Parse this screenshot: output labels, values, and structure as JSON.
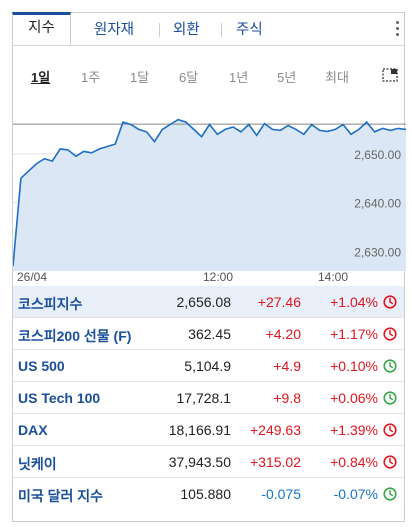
{
  "tabs": [
    {
      "label": "지수",
      "active": true
    },
    {
      "label": "원자재",
      "active": false
    },
    {
      "label": "외환",
      "active": false
    },
    {
      "label": "주식",
      "active": false
    }
  ],
  "ranges": [
    {
      "label": "1일",
      "active": true
    },
    {
      "label": "1주",
      "active": false
    },
    {
      "label": "1달",
      "active": false
    },
    {
      "label": "6달",
      "active": false
    },
    {
      "label": "1년",
      "active": false
    },
    {
      "label": "5년",
      "active": false
    },
    {
      "label": "최대",
      "active": false
    }
  ],
  "chart_data": {
    "type": "line",
    "title": "",
    "series": [
      {
        "x": [
          0,
          2,
          4,
          6,
          8,
          10,
          12,
          14,
          16,
          18,
          20,
          22,
          24,
          26,
          28,
          30,
          32,
          34,
          36,
          38,
          40,
          42,
          44,
          46,
          48,
          50,
          52,
          54,
          56,
          58,
          60,
          62,
          64,
          66,
          68,
          70,
          72,
          74,
          76,
          78,
          80,
          82,
          84,
          86,
          88,
          90,
          92,
          94,
          96,
          98,
          100
        ],
        "values": [
          2627.0,
          2645.0,
          2646.5,
          2648.0,
          2649.0,
          2648.5,
          2651.0,
          2650.8,
          2649.5,
          2650.5,
          2650.2,
          2651.0,
          2651.5,
          2652.0,
          2656.5,
          2656.0,
          2655.0,
          2654.5,
          2652.5,
          2655.0,
          2656.0,
          2657.0,
          2656.5,
          2655.0,
          2653.5,
          2656.0,
          2654.0,
          2655.0,
          2655.5,
          2654.5,
          2656.0,
          2653.8,
          2656.2,
          2655.0,
          2654.8,
          2655.8,
          2655.0,
          2654.0,
          2656.0,
          2654.8,
          2654.6,
          2655.0,
          2656.0,
          2654.0,
          2655.0,
          2656.5,
          2654.5,
          2655.2,
          2654.8,
          2655.2,
          2655.0
        ]
      }
    ],
    "reference_line": 2656.08,
    "x_tick_labels": [
      "26/04",
      "12:00",
      "14:00"
    ],
    "y_ticks": [
      "2,650.00",
      "2,640.00",
      "2,630.00"
    ],
    "ylim": [
      2626,
      2660
    ],
    "line_color": "#1f6ec6",
    "area_color": "#dbe7f4"
  },
  "rows": [
    {
      "name": "코스피지수",
      "price": "2,656.08",
      "change": "+27.46",
      "percent": "+1.04%",
      "direction": "up",
      "clock": "red",
      "selected": true
    },
    {
      "name": "코스피200 선물 (F)",
      "price": "362.45",
      "change": "+4.20",
      "percent": "+1.17%",
      "direction": "up",
      "clock": "red",
      "selected": false
    },
    {
      "name": "US 500",
      "price": "5,104.9",
      "change": "+4.9",
      "percent": "+0.10%",
      "direction": "up",
      "clock": "green",
      "selected": false
    },
    {
      "name": "US Tech 100",
      "price": "17,728.1",
      "change": "+9.8",
      "percent": "+0.06%",
      "direction": "up",
      "clock": "green",
      "selected": false
    },
    {
      "name": "DAX",
      "price": "18,166.91",
      "change": "+249.63",
      "percent": "+1.39%",
      "direction": "up",
      "clock": "red",
      "selected": false
    },
    {
      "name": "닛케이",
      "price": "37,943.50",
      "change": "+315.02",
      "percent": "+0.84%",
      "direction": "up",
      "clock": "red",
      "selected": false
    },
    {
      "name": "미국 달러 지수",
      "price": "105.880",
      "change": "-0.075",
      "percent": "-0.07%",
      "direction": "down",
      "clock": "green",
      "selected": false
    }
  ],
  "colors": {
    "accent": "#1a4f9c",
    "up": "#e0151f",
    "down": "#1a73c9",
    "clock_red": "#e0151f",
    "clock_green": "#3aa54a"
  }
}
